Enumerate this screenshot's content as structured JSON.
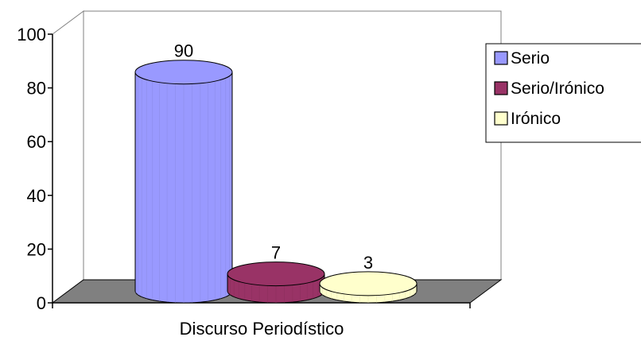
{
  "chart_data": {
    "type": "bar",
    "categories": [
      "Discurso Periodístico"
    ],
    "xlabel": "Discurso Periodístico",
    "series": [
      {
        "name": "Serio",
        "values": [
          90
        ],
        "color": "#9999ff"
      },
      {
        "name": "Serio/Irónico",
        "values": [
          7
        ],
        "color": "#993366"
      },
      {
        "name": "Irónico",
        "values": [
          3
        ],
        "color": "#ffffcc"
      }
    ],
    "data_labels": [
      "90",
      "7",
      "3"
    ],
    "y_ticks": [
      "0",
      "20",
      "40",
      "60",
      "80",
      "100"
    ],
    "ylim": [
      0,
      100
    ],
    "grid": false,
    "legend_position": "right",
    "style": "3d-cylinder",
    "floor_color": "#808080"
  }
}
